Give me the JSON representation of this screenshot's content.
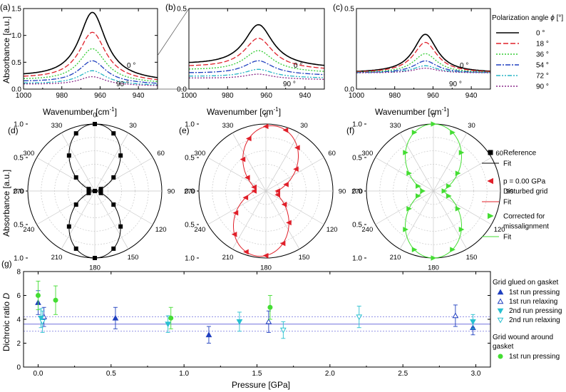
{
  "figure": {
    "row1_ylabel": "Absorbance [a.u.]",
    "row1_xlabel_main": "Wavenumber [cm",
    "row1_xlabel_sup": "-1",
    "row1_xlabel_end": "]",
    "row2_ylabel": "Absorbance [a.u.]",
    "row3_ylabel_main": "Dichroic ratio ",
    "row3_ylabel_var": "D",
    "row3_xlabel": "Pressure [GPa]"
  },
  "chart_data": [
    {
      "panel": "(a)",
      "type": "line",
      "xlabel": "Wavenumber [cm-1]",
      "ylabel": "Absorbance [a.u.]",
      "xlim": [
        1000,
        930
      ],
      "ylim": [
        0,
        1.5
      ],
      "xticks": [
        "1000",
        "980",
        "960",
        "940"
      ],
      "yticks": [
        "0.0",
        "0.5",
        "1.0",
        "1.5"
      ],
      "peak_x": 964,
      "width": 8.5,
      "baseline_left": 0.22,
      "baseline_right": 0.14,
      "peaks": [
        1.25,
        0.9,
        0.62,
        0.42,
        0.26,
        0.16
      ],
      "base_scale": [
        1.0,
        0.88,
        0.74,
        0.6,
        0.46,
        0.4
      ],
      "annotations": [
        "0 °",
        "90 °"
      ]
    },
    {
      "panel": "(b)",
      "type": "line",
      "xlabel": "Wavenumber [cm-1]",
      "ylabel": "",
      "xlim": [
        1000,
        930
      ],
      "ylim": [
        0,
        0.5
      ],
      "xticks": [
        "1000",
        "980",
        "960",
        "940"
      ],
      "yticks": [
        "0.0",
        "0.5"
      ],
      "peak_x": 964,
      "width": 9.0,
      "baseline_left": 0.15,
      "baseline_right": 0.13,
      "peaks": [
        0.26,
        0.19,
        0.13,
        0.085,
        0.05,
        0.03
      ],
      "base_scale": [
        1.0,
        0.9,
        0.78,
        0.65,
        0.52,
        0.45
      ],
      "annotations": [
        "0 °",
        "90 °"
      ]
    },
    {
      "panel": "(c)",
      "type": "line",
      "xlabel": "Wavenumber [cm-1]",
      "ylabel": "",
      "xlim": [
        1000,
        930
      ],
      "ylim": [
        0,
        0.5
      ],
      "xticks": [
        "1000",
        "980",
        "960",
        "940"
      ],
      "yticks": [
        "0.0",
        "0.5"
      ],
      "peak_x": 964,
      "width": 7.5,
      "baseline_left": 0.1,
      "baseline_right": 0.1,
      "peaks": [
        0.24,
        0.19,
        0.12,
        0.075,
        0.045,
        0.03
      ],
      "base_scale": [
        1.0,
        1.0,
        1.0,
        1.0,
        1.0,
        1.0
      ],
      "annotations": [
        "0 °",
        "90 °"
      ]
    },
    {
      "type": "legend",
      "title_main": "Polarization angle ",
      "title_var": "ϕ",
      "title_unit": " [°]",
      "entries": [
        {
          "label": "0 °",
          "color": "#000000",
          "dash": ""
        },
        {
          "label": "18 °",
          "color": "#e0202a",
          "dash": "7,3"
        },
        {
          "label": "36 °",
          "color": "#33cc33",
          "dash": "2,2"
        },
        {
          "label": "54 °",
          "color": "#1f3fbf",
          "dash": "7,2,2,2"
        },
        {
          "label": "72 °",
          "color": "#29b6c6",
          "dash": "6,2,2,2,2,2"
        },
        {
          "label": "90 °",
          "color": "#8a2a8a",
          "dash": "2,2"
        }
      ]
    },
    {
      "panel": "(d)",
      "type": "polar",
      "color": "#000000",
      "marker": "square",
      "angle_labels": [
        "0",
        "30",
        "60",
        "90",
        "120",
        "150",
        "180",
        "210",
        "240",
        "270",
        "300",
        "330"
      ],
      "radial_labels": [
        "1.0",
        "0.5",
        "0.0",
        "0.5",
        "1.0"
      ],
      "amplitude": 1.0,
      "minimum": 0.0,
      "angles": [
        0,
        18,
        36,
        54,
        72,
        90,
        108,
        126,
        144,
        162,
        180,
        198,
        216,
        234,
        252,
        270,
        288,
        306,
        324,
        342
      ]
    },
    {
      "panel": "(e)",
      "type": "polar",
      "color": "#e0202a",
      "marker": "triangle-left",
      "angle_labels": [
        "0",
        "30",
        "60",
        "90",
        "120",
        "150",
        "180",
        "210",
        "240",
        "270",
        "300",
        "330"
      ],
      "radial_labels": [
        "1.0",
        "0.5",
        "0.0",
        "0.5",
        "1.0"
      ],
      "amplitude": 0.98,
      "minimum": 0.16,
      "rotation": 8,
      "angles": [
        0,
        18,
        36,
        54,
        72,
        90,
        108,
        126,
        144,
        162,
        180,
        198,
        216,
        234,
        252,
        270,
        288,
        306,
        324,
        342
      ]
    },
    {
      "panel": "(f)",
      "type": "polar",
      "color": "#44dd33",
      "marker": "triangle-right",
      "angle_labels": [
        "0",
        "30",
        "60",
        "90",
        "120",
        "150",
        "180",
        "210",
        "240",
        "270",
        "300",
        "330"
      ],
      "radial_labels": [
        "1.0",
        "0.5",
        "0.0",
        "0.5",
        "1.0"
      ],
      "amplitude": 1.0,
      "minimum": 0.16,
      "angles": [
        0,
        18,
        36,
        54,
        72,
        90,
        108,
        126,
        144,
        162,
        180,
        198,
        216,
        234,
        252,
        270,
        288,
        306,
        324,
        342
      ]
    },
    {
      "type": "legend",
      "entries": [
        {
          "label": "Reference",
          "color": "#000000",
          "marker": "square"
        },
        {
          "label": "Fit",
          "color": "#000000",
          "line": true
        },
        {
          "label": "p = 0.00 GPa",
          "color": "#e0202a",
          "marker": "triangle-left"
        },
        {
          "label": "Disturbed grid",
          "color": "",
          "marker": "none"
        },
        {
          "label": "Fit",
          "color": "#e0202a",
          "line": true
        },
        {
          "label": "Corrected for",
          "color": "#44dd33",
          "marker": "triangle-right"
        },
        {
          "label": "missalignment",
          "color": "",
          "marker": "none"
        },
        {
          "label": "Fit",
          "color": "#44dd33",
          "line": true
        }
      ]
    },
    {
      "panel": "(g)",
      "type": "scatter",
      "xlabel": "Pressure [GPa]",
      "ylabel": "Dichroic ratio D",
      "xlim": [
        -0.1,
        3.1
      ],
      "ylim": [
        0,
        8
      ],
      "xticks": [
        "0.0",
        "0.5",
        "1.0",
        "1.5",
        "2.0",
        "2.5",
        "3.0"
      ],
      "yticks": [
        "0",
        "2",
        "4",
        "6",
        "8"
      ],
      "fit": {
        "mean": 3.6,
        "band_upper": 4.2,
        "band_lower": 3.0,
        "color": "#7070dd"
      },
      "series": [
        {
          "name": "1st run pressing (glued)",
          "color": "#1f3fbf",
          "marker": "tri-up-filled",
          "points": [
            [
              0.0,
              5.4,
              1.0
            ],
            [
              0.53,
              4.1,
              0.9
            ],
            [
              1.17,
              2.7,
              0.7
            ],
            [
              2.98,
              3.3,
              0.6
            ]
          ]
        },
        {
          "name": "1st run relaxing (glued)",
          "color": "#1f3fbf",
          "marker": "tri-up-open",
          "points": [
            [
              0.04,
              4.2,
              0.8
            ],
            [
              1.58,
              3.8,
              0.9
            ],
            [
              2.86,
              4.3,
              0.9
            ]
          ]
        },
        {
          "name": "2nd run pressing",
          "color": "#29c0d0",
          "marker": "tri-down-filled",
          "points": [
            [
              0.02,
              4.1,
              0.8
            ],
            [
              0.89,
              3.6,
              0.7
            ],
            [
              1.38,
              3.8,
              0.8
            ],
            [
              2.98,
              3.8,
              0.6
            ]
          ]
        },
        {
          "name": "2nd run relaxing",
          "color": "#29c0d0",
          "marker": "tri-down-open",
          "points": [
            [
              0.03,
              3.8,
              0.9
            ],
            [
              1.68,
              3.1,
              0.7
            ],
            [
              2.2,
              4.2,
              0.9
            ]
          ]
        },
        {
          "name": "1st run pressing (wound)",
          "color": "#44dd33",
          "marker": "circle",
          "points": [
            [
              0.0,
              6.0,
              1.2
            ],
            [
              0.12,
              5.6,
              1.2
            ],
            [
              0.91,
              4.1,
              0.9
            ],
            [
              1.59,
              5.0,
              1.0
            ]
          ]
        }
      ]
    },
    {
      "type": "legend",
      "title1": "Grid glued on gasket",
      "entries1": [
        {
          "label": "1st run pressing",
          "color": "#1f3fbf",
          "marker": "tri-up-filled"
        },
        {
          "label": "1st run relaxing",
          "color": "#1f3fbf",
          "marker": "tri-up-open"
        },
        {
          "label": "2nd run pressing",
          "color": "#29c0d0",
          "marker": "tri-down-filled"
        },
        {
          "label": "2nd run relaxing",
          "color": "#29c0d0",
          "marker": "tri-down-open"
        }
      ],
      "title2": "Grid wound around",
      "title2b": "gasket",
      "entries2": [
        {
          "label": "1st run pressing",
          "color": "#44dd33",
          "marker": "circle"
        }
      ]
    }
  ]
}
